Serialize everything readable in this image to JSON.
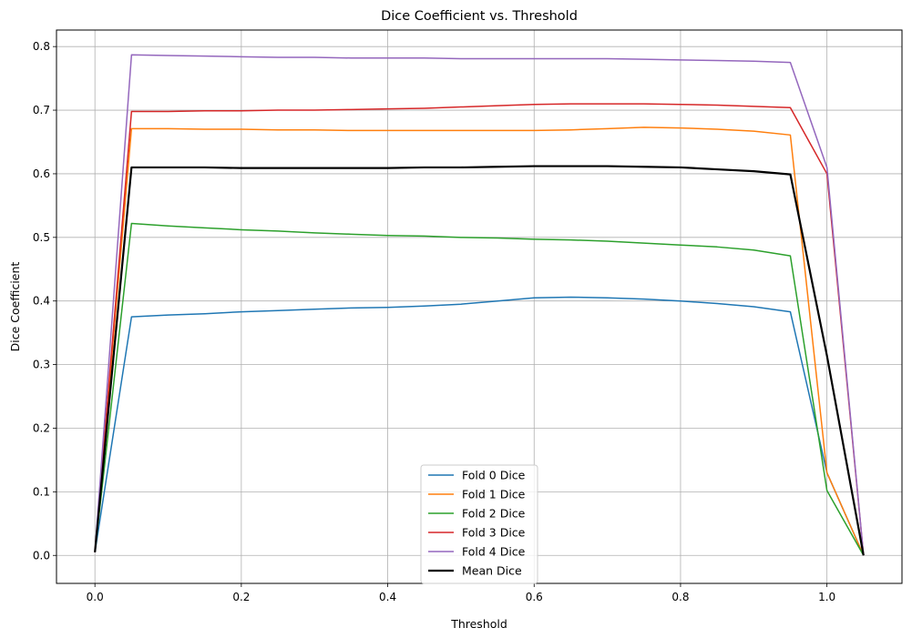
{
  "chart_data": {
    "type": "line",
    "title": "Dice Coefficient vs. Threshold",
    "xlabel": "Threshold",
    "ylabel": "Dice Coefficient",
    "xlim": [
      -0.0525,
      1.1025
    ],
    "ylim": [
      -0.044,
      0.826
    ],
    "xticks": [
      0.0,
      0.2,
      0.4,
      0.6,
      0.8,
      1.0
    ],
    "xtick_labels": [
      "0.0",
      "0.2",
      "0.4",
      "0.6",
      "0.8",
      "1.0"
    ],
    "yticks": [
      0.0,
      0.1,
      0.2,
      0.3,
      0.4,
      0.5,
      0.6,
      0.7,
      0.8
    ],
    "ytick_labels": [
      "0.0",
      "0.1",
      "0.2",
      "0.3",
      "0.4",
      "0.5",
      "0.6",
      "0.7",
      "0.8"
    ],
    "grid": true,
    "legend_position": "bottom-center",
    "x": [
      0.0,
      0.05,
      0.1,
      0.15,
      0.2,
      0.25,
      0.3,
      0.35,
      0.4,
      0.45,
      0.5,
      0.55,
      0.6,
      0.65,
      0.7,
      0.75,
      0.8,
      0.85,
      0.9,
      0.95,
      1.0,
      1.05
    ],
    "series": [
      {
        "name": "Fold 0 Dice",
        "color": "#1f77b4",
        "width": 1.5,
        "values": [
          0.005,
          0.375,
          0.378,
          0.38,
          0.383,
          0.385,
          0.387,
          0.389,
          0.39,
          0.392,
          0.395,
          0.4,
          0.405,
          0.406,
          0.405,
          0.403,
          0.4,
          0.396,
          0.391,
          0.383,
          0.13,
          0.0
        ]
      },
      {
        "name": "Fold 1 Dice",
        "color": "#ff7f0e",
        "width": 1.5,
        "values": [
          0.005,
          0.671,
          0.671,
          0.67,
          0.67,
          0.669,
          0.669,
          0.668,
          0.668,
          0.668,
          0.668,
          0.668,
          0.668,
          0.669,
          0.671,
          0.673,
          0.672,
          0.67,
          0.667,
          0.661,
          0.13,
          0.0
        ]
      },
      {
        "name": "Fold 2 Dice",
        "color": "#2ca02c",
        "width": 1.5,
        "values": [
          0.005,
          0.522,
          0.518,
          0.515,
          0.512,
          0.51,
          0.507,
          0.505,
          0.503,
          0.502,
          0.5,
          0.499,
          0.497,
          0.496,
          0.494,
          0.491,
          0.488,
          0.485,
          0.48,
          0.471,
          0.102,
          0.0
        ]
      },
      {
        "name": "Fold 3 Dice",
        "color": "#d62728",
        "width": 1.5,
        "values": [
          0.005,
          0.698,
          0.698,
          0.699,
          0.699,
          0.7,
          0.7,
          0.701,
          0.702,
          0.703,
          0.705,
          0.707,
          0.709,
          0.71,
          0.71,
          0.71,
          0.709,
          0.708,
          0.706,
          0.704,
          0.6,
          0.0
        ]
      },
      {
        "name": "Fold 4 Dice",
        "color": "#9467bd",
        "width": 1.5,
        "values": [
          0.005,
          0.787,
          0.786,
          0.785,
          0.784,
          0.783,
          0.783,
          0.782,
          0.782,
          0.782,
          0.781,
          0.781,
          0.781,
          0.781,
          0.781,
          0.78,
          0.779,
          0.778,
          0.777,
          0.775,
          0.61,
          0.0
        ]
      },
      {
        "name": "Mean Dice",
        "color": "#000000",
        "width": 2.2,
        "values": [
          0.005,
          0.61,
          0.61,
          0.61,
          0.609,
          0.609,
          0.609,
          0.609,
          0.609,
          0.61,
          0.61,
          0.611,
          0.612,
          0.612,
          0.612,
          0.611,
          0.61,
          0.607,
          0.604,
          0.599,
          0.314,
          0.0
        ]
      }
    ]
  }
}
